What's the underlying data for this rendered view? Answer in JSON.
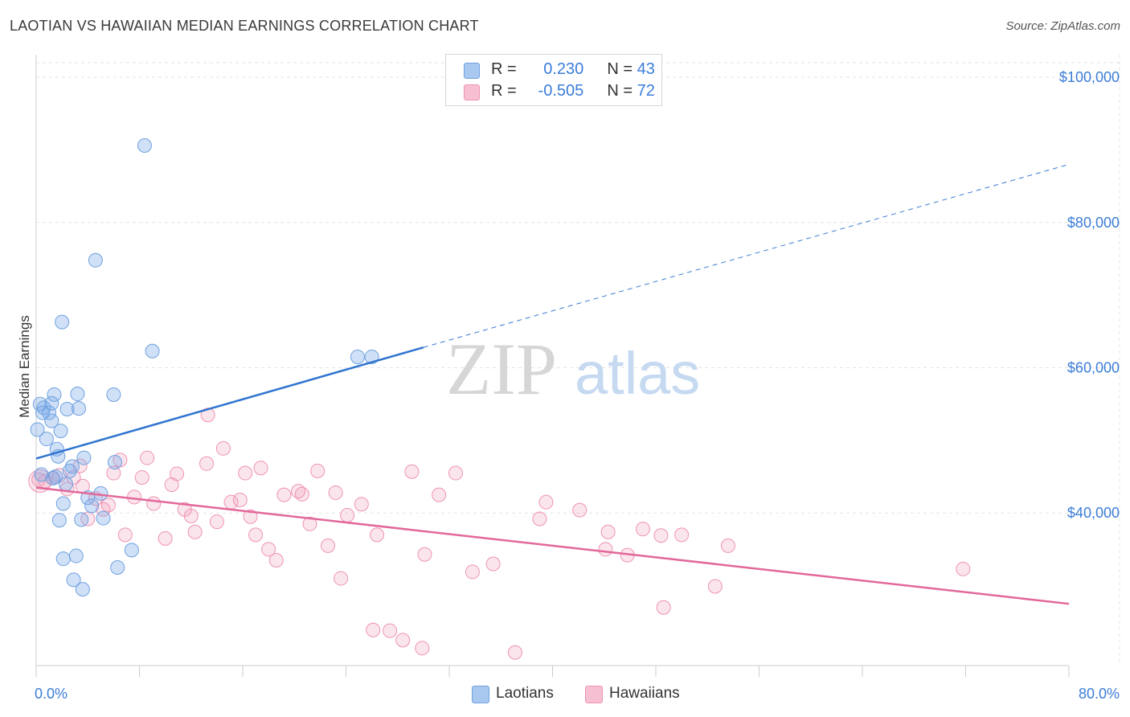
{
  "header": {
    "title": "LAOTIAN VS HAWAIIAN MEDIAN EARNINGS CORRELATION CHART",
    "source": "Source: ZipAtlas.com"
  },
  "watermark": {
    "zip": "ZIP",
    "atlas": "atlas"
  },
  "legend": {
    "rows": [
      {
        "r_label": "R =",
        "r_value": "0.230",
        "n_label": "N =",
        "n_value": "43",
        "color": "#a9c8f0",
        "border": "#6fa1e0"
      },
      {
        "r_label": "R =",
        "r_value": "-0.505",
        "n_label": "N =",
        "n_value": "72",
        "color": "#f7c0d2",
        "border": "#ee93b3"
      }
    ]
  },
  "bottom_legend": [
    {
      "label": "Laotians",
      "color": "#a9c8f0",
      "border": "#6fa1e0"
    },
    {
      "label": "Hawaiians",
      "color": "#f7c0d2",
      "border": "#ee93b3"
    }
  ],
  "colors": {
    "laotian_fill": "rgba(120,168,232,0.35)",
    "laotian_stroke": "#6fa1e0",
    "laotian_line": "#2f74d0",
    "hawaiian_fill": "rgba(240,150,182,0.25)",
    "hawaiian_stroke": "#ee93b3",
    "hawaiian_line": "#e2689a",
    "tick_label": "#3b7dd8",
    "grid": "#e3e3e3"
  },
  "chart_data": {
    "type": "scatter",
    "title": "LAOTIAN VS HAWAIIAN MEDIAN EARNINGS CORRELATION CHART",
    "xlabel": "",
    "ylabel": "Median Earnings",
    "xlim": [
      0,
      80
    ],
    "ylim": [
      19000,
      102000
    ],
    "x_tick_labels": [
      "0.0%",
      "80.0%"
    ],
    "y_ticks": [
      40000,
      60000,
      80000,
      100000
    ],
    "y_tick_labels": [
      "$40,000",
      "$60,000",
      "$80,000",
      "$100,000"
    ],
    "grid": true,
    "legend_position": "top-center",
    "series": [
      {
        "name": "Laotians",
        "points": [
          [
            0.1,
            51500
          ],
          [
            0.3,
            55000
          ],
          [
            0.5,
            53800
          ],
          [
            0.6,
            54500
          ],
          [
            0.8,
            50200
          ],
          [
            1.0,
            53800
          ],
          [
            1.2,
            52700
          ],
          [
            1.4,
            56300
          ],
          [
            1.6,
            48800
          ],
          [
            1.7,
            47800
          ],
          [
            1.9,
            51300
          ],
          [
            2.1,
            41300
          ],
          [
            2.3,
            44000
          ],
          [
            2.4,
            54300
          ],
          [
            2.6,
            45800
          ],
          [
            2.8,
            46400
          ],
          [
            3.2,
            56400
          ],
          [
            3.3,
            54400
          ],
          [
            3.5,
            39100
          ],
          [
            3.7,
            47600
          ],
          [
            4.0,
            42100
          ],
          [
            4.3,
            41000
          ],
          [
            4.6,
            74800
          ],
          [
            5.0,
            42700
          ],
          [
            5.2,
            39300
          ],
          [
            6.0,
            56300
          ],
          [
            6.3,
            32500
          ],
          [
            7.4,
            34900
          ],
          [
            8.4,
            90600
          ],
          [
            2.0,
            66300
          ],
          [
            9.0,
            62300
          ],
          [
            1.8,
            39000
          ],
          [
            2.1,
            33700
          ],
          [
            3.1,
            34100
          ],
          [
            2.9,
            30800
          ],
          [
            3.6,
            29500
          ],
          [
            1.3,
            44800
          ],
          [
            0.4,
            45300
          ],
          [
            6.1,
            47000
          ],
          [
            1.5,
            45000
          ],
          [
            1.2,
            55100
          ],
          [
            24.9,
            61500
          ],
          [
            26.0,
            61500
          ]
        ]
      },
      {
        "name": "Hawaiians",
        "points": [
          [
            0.2,
            44600
          ],
          [
            0.7,
            44400
          ],
          [
            1.3,
            44800
          ],
          [
            1.8,
            45200
          ],
          [
            2.4,
            43300
          ],
          [
            2.9,
            44900
          ],
          [
            3.4,
            46500
          ],
          [
            3.6,
            43700
          ],
          [
            4.0,
            39200
          ],
          [
            4.6,
            42000
          ],
          [
            5.2,
            40500
          ],
          [
            5.6,
            41100
          ],
          [
            6.0,
            45500
          ],
          [
            6.5,
            47300
          ],
          [
            6.9,
            37000
          ],
          [
            7.6,
            42200
          ],
          [
            8.2,
            44900
          ],
          [
            8.6,
            47600
          ],
          [
            9.1,
            41300
          ],
          [
            10.0,
            36500
          ],
          [
            10.5,
            43900
          ],
          [
            10.9,
            45400
          ],
          [
            11.5,
            40500
          ],
          [
            12.3,
            37400
          ],
          [
            12.0,
            39600
          ],
          [
            13.2,
            46800
          ],
          [
            13.3,
            53500
          ],
          [
            14.0,
            38800
          ],
          [
            14.5,
            48900
          ],
          [
            15.1,
            41500
          ],
          [
            15.8,
            41800
          ],
          [
            16.2,
            45500
          ],
          [
            16.6,
            39500
          ],
          [
            17.0,
            37000
          ],
          [
            17.4,
            46200
          ],
          [
            18.0,
            35000
          ],
          [
            18.6,
            33500
          ],
          [
            19.2,
            42500
          ],
          [
            20.3,
            43000
          ],
          [
            20.6,
            42600
          ],
          [
            21.2,
            38500
          ],
          [
            21.8,
            45800
          ],
          [
            22.6,
            35500
          ],
          [
            23.2,
            42800
          ],
          [
            23.6,
            31000
          ],
          [
            24.1,
            39700
          ],
          [
            25.2,
            41200
          ],
          [
            26.4,
            37000
          ],
          [
            27.4,
            23800
          ],
          [
            28.4,
            22500
          ],
          [
            29.1,
            45700
          ],
          [
            29.9,
            21400
          ],
          [
            31.2,
            42500
          ],
          [
            32.5,
            45500
          ],
          [
            33.8,
            31900
          ],
          [
            35.4,
            33000
          ],
          [
            39.0,
            39200
          ],
          [
            39.5,
            41500
          ],
          [
            42.1,
            40400
          ],
          [
            44.1,
            35000
          ],
          [
            44.3,
            37400
          ],
          [
            45.8,
            34200
          ],
          [
            47.0,
            37800
          ],
          [
            48.4,
            36900
          ],
          [
            48.6,
            27000
          ],
          [
            50.0,
            37000
          ],
          [
            52.6,
            29900
          ],
          [
            53.6,
            35500
          ],
          [
            71.8,
            32300
          ],
          [
            30.1,
            34300
          ],
          [
            37.1,
            20800
          ],
          [
            26.1,
            23900
          ]
        ]
      }
    ],
    "trend_lines": [
      {
        "series": "Laotians",
        "start": [
          0,
          47500
        ],
        "end_solid": [
          30,
          62800
        ],
        "end": [
          80,
          88000
        ],
        "dashed_beyond": 30
      },
      {
        "series": "Hawaiians",
        "start": [
          0,
          43500
        ],
        "end": [
          80,
          27500
        ]
      }
    ]
  }
}
